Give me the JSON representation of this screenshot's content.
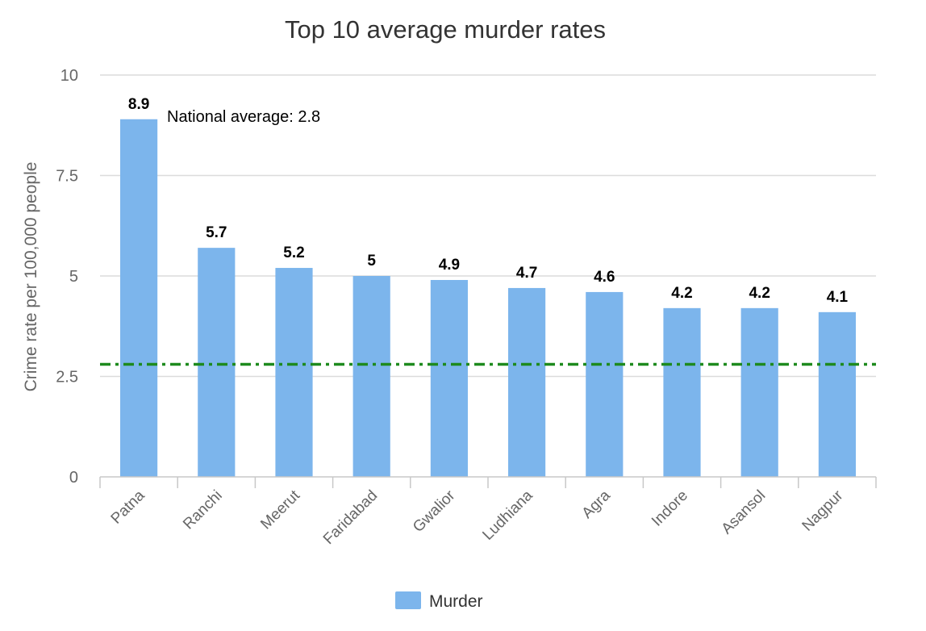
{
  "chart_data": {
    "type": "bar",
    "title": "Top 10 average murder rates",
    "ylabel": "Crime rate per 100,000 people",
    "xlabel": "",
    "categories": [
      "Patna",
      "Ranchi",
      "Meerut",
      "Faridabad",
      "Gwalior",
      "Ludhiana",
      "Agra",
      "Indore",
      "Asansol",
      "Nagpur"
    ],
    "series": [
      {
        "name": "Murder",
        "values": [
          8.9,
          5.7,
          5.2,
          5,
          4.9,
          4.7,
          4.6,
          4.2,
          4.2,
          4.1
        ],
        "color": "#7cb5ec"
      }
    ],
    "data_labels": [
      "8.9",
      "5.7",
      "5.2",
      "5",
      "4.9",
      "4.7",
      "4.6",
      "4.2",
      "4.2",
      "4.1"
    ],
    "ylim": [
      0,
      10
    ],
    "yticks": [
      0,
      2.5,
      5,
      7.5,
      10
    ],
    "ytick_labels": [
      "0",
      "2.5",
      "5",
      "7.5",
      "10"
    ],
    "reference_line": {
      "value": 2.8,
      "label": "National average: 2.8",
      "color": "#1e8a1e",
      "style": "dash-dot"
    },
    "grid": true,
    "legend": {
      "position": "bottom-center",
      "entries": [
        "Murder"
      ]
    }
  }
}
